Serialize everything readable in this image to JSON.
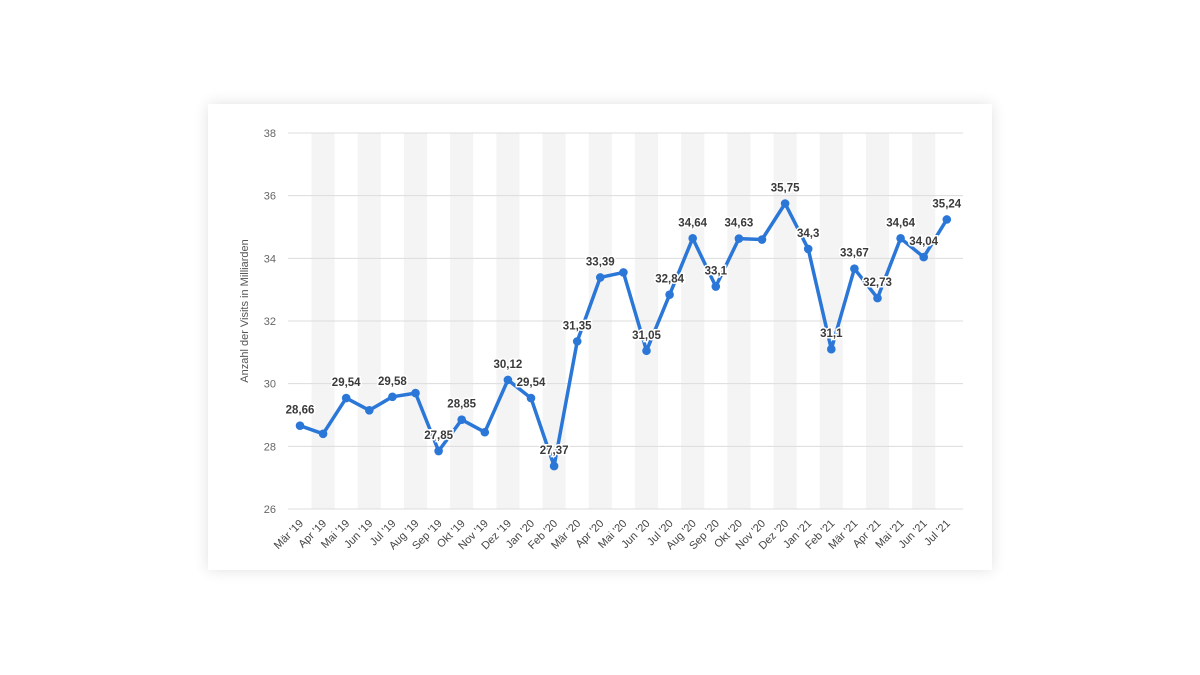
{
  "chart_data": {
    "type": "line",
    "title": "",
    "xlabel": "",
    "ylabel": "Anzahl der Visits in Milliarden",
    "ylim": [
      26,
      38
    ],
    "yticks": [
      26,
      28,
      30,
      32,
      34,
      36,
      38
    ],
    "grid": true,
    "legend": "none",
    "color": "#2b77d8",
    "categories": [
      "Mär '19",
      "Apr '19",
      "Mai '19",
      "Jun '19",
      "Jul '19",
      "Aug '19",
      "Sep '19",
      "Okt '19",
      "Nov '19",
      "Dez '19",
      "Jan '20",
      "Feb '20",
      "Mär '20",
      "Apr '20",
      "Mai '20",
      "Jun '20",
      "Jul '20",
      "Aug '20",
      "Sep '20",
      "Okt '20",
      "Nov '20",
      "Dez '20",
      "Jan '21",
      "Feb '21",
      "Mär '21",
      "Apr '21",
      "Mai '21",
      "Jun '21",
      "Jul '21"
    ],
    "values": [
      28.66,
      28.4,
      29.54,
      29.15,
      29.58,
      29.7,
      27.85,
      28.85,
      28.45,
      30.12,
      29.54,
      27.37,
      31.35,
      33.39,
      33.55,
      31.05,
      32.84,
      34.64,
      33.1,
      34.63,
      34.6,
      35.75,
      34.3,
      31.1,
      33.67,
      32.73,
      34.64,
      34.04,
      35.24
    ],
    "data_labels": [
      "28,66",
      "",
      "29,54",
      "",
      "29,58",
      "",
      "27,85",
      "28,85",
      "",
      "30,12",
      "29,54",
      "27,37",
      "31,35",
      "33,39",
      "",
      "31,05",
      "32,84",
      "34,64",
      "33,1",
      "34,63",
      "",
      "35,75",
      "34,3",
      "31,1",
      "33,67",
      "32,73",
      "34,64",
      "34,04",
      "35,24"
    ],
    "tick_labels": [
      "26",
      "28",
      "30",
      "32",
      "34",
      "36",
      "38"
    ]
  }
}
